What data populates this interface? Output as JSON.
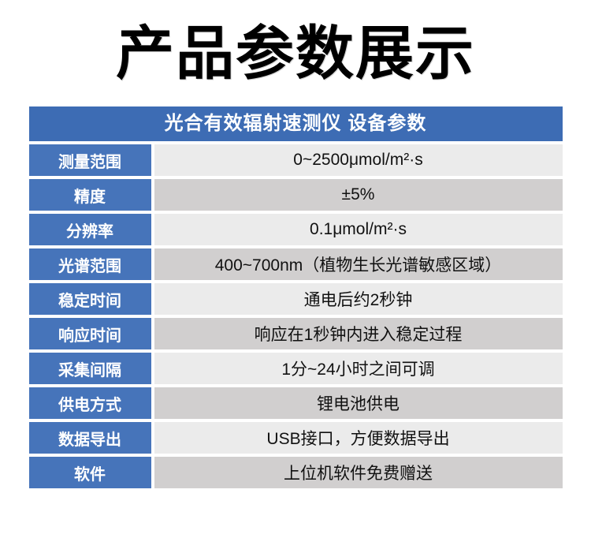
{
  "page": {
    "title": "产品参数展示"
  },
  "table": {
    "header": "光合有效辐射速测仪 设备参数",
    "rows": [
      {
        "label": "测量范围",
        "value": "0~2500μmol/m²·s"
      },
      {
        "label": "精度",
        "value": "±5%"
      },
      {
        "label": "分辨率",
        "value": "0.1μmol/m²·s"
      },
      {
        "label": "光谱范围",
        "value": "400~700nm（植物生长光谱敏感区域）"
      },
      {
        "label": "稳定时间",
        "value": "通电后约2秒钟"
      },
      {
        "label": "响应时间",
        "value": "响应在1秒钟内进入稳定过程"
      },
      {
        "label": "采集间隔",
        "value": "1分~24小时之间可调"
      },
      {
        "label": "供电方式",
        "value": "锂电池供电"
      },
      {
        "label": "数据导出",
        "value": "USB接口，方便数据导出"
      },
      {
        "label": "软件",
        "value": "上位机软件免费赠送"
      }
    ],
    "colors": {
      "header_bg": "#3d6cb4",
      "label_bg": "#4674ba",
      "header_text": "#ffffff",
      "row_light_bg": "#ebebeb",
      "row_dark_bg": "#d1cfcf",
      "value_text": "#111111"
    }
  }
}
